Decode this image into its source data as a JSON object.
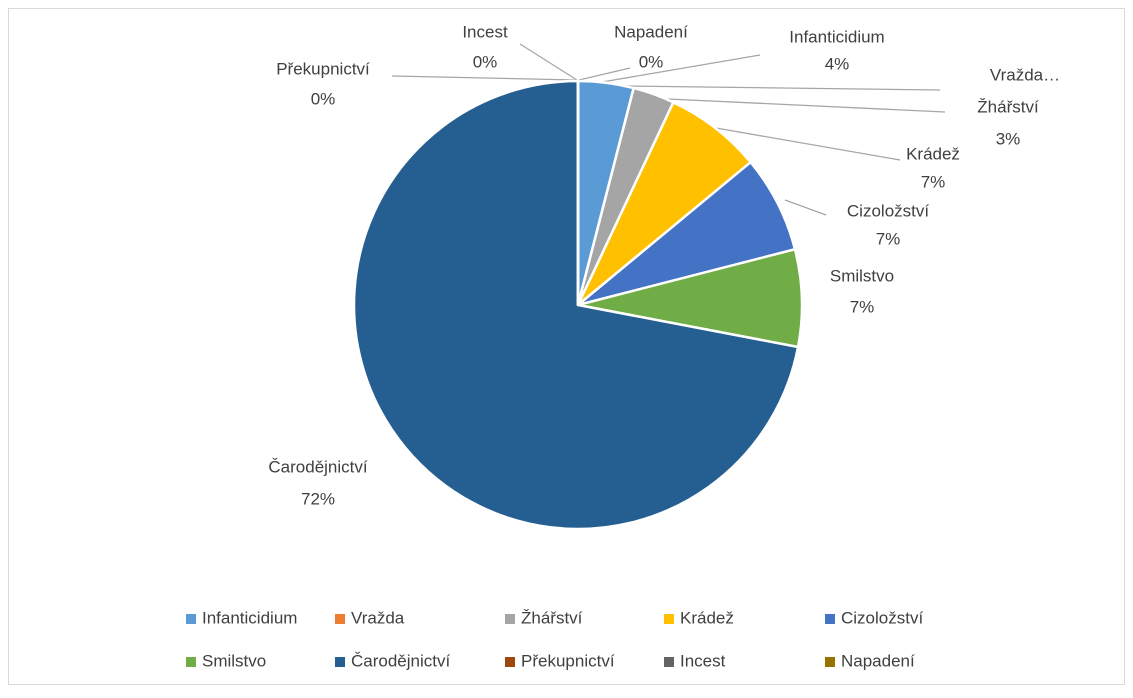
{
  "chart_data": {
    "type": "pie",
    "categories": [
      "Infanticidium",
      "Vražda",
      "Žhářství",
      "Krádež",
      "Cizoložství",
      "Smilstvo",
      "Čarodějnictví",
      "Překupnictví",
      "Incest",
      "Napadení"
    ],
    "values": [
      4,
      0,
      3,
      7,
      7,
      7,
      72,
      0,
      0,
      0
    ],
    "value_labels": [
      "4%",
      null,
      "3%",
      "7%",
      "7%",
      "7%",
      "72%",
      "0%",
      "0%",
      "0%"
    ],
    "truncated_label": "Vražda…",
    "colors": [
      "#5b9bd5",
      "#ed7d31",
      "#a5a5a5",
      "#ffc000",
      "#4472c4",
      "#70ad47",
      "#255e91",
      "#9e480e",
      "#636363",
      "#997300"
    ],
    "legend": "bottom"
  }
}
